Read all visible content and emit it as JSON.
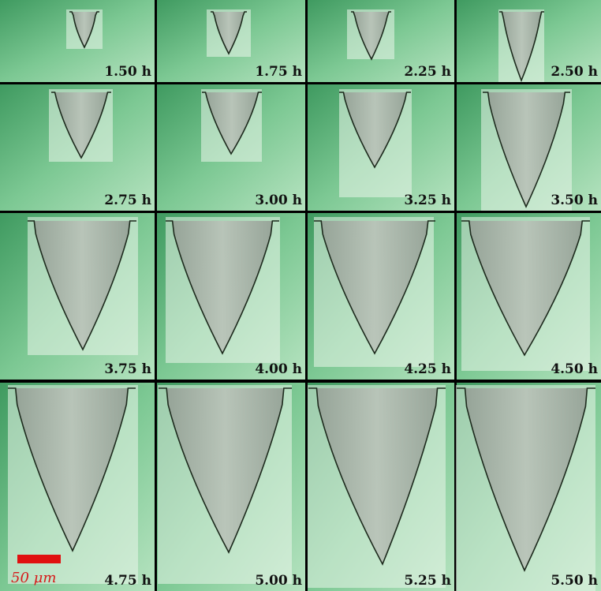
{
  "panels": [
    "1.50 h",
    "1.75 h",
    "2.25 h",
    "2.50 h",
    "2.75 h",
    "3.00 h",
    "3.25 h",
    "3.50 h",
    "3.75 h",
    "4.00 h",
    "4.25 h",
    "4.50 h",
    "4.75 h",
    "5.00 h",
    "5.25 h",
    "5.50 h"
  ],
  "scale_bar": {
    "label": "50 μm"
  }
}
